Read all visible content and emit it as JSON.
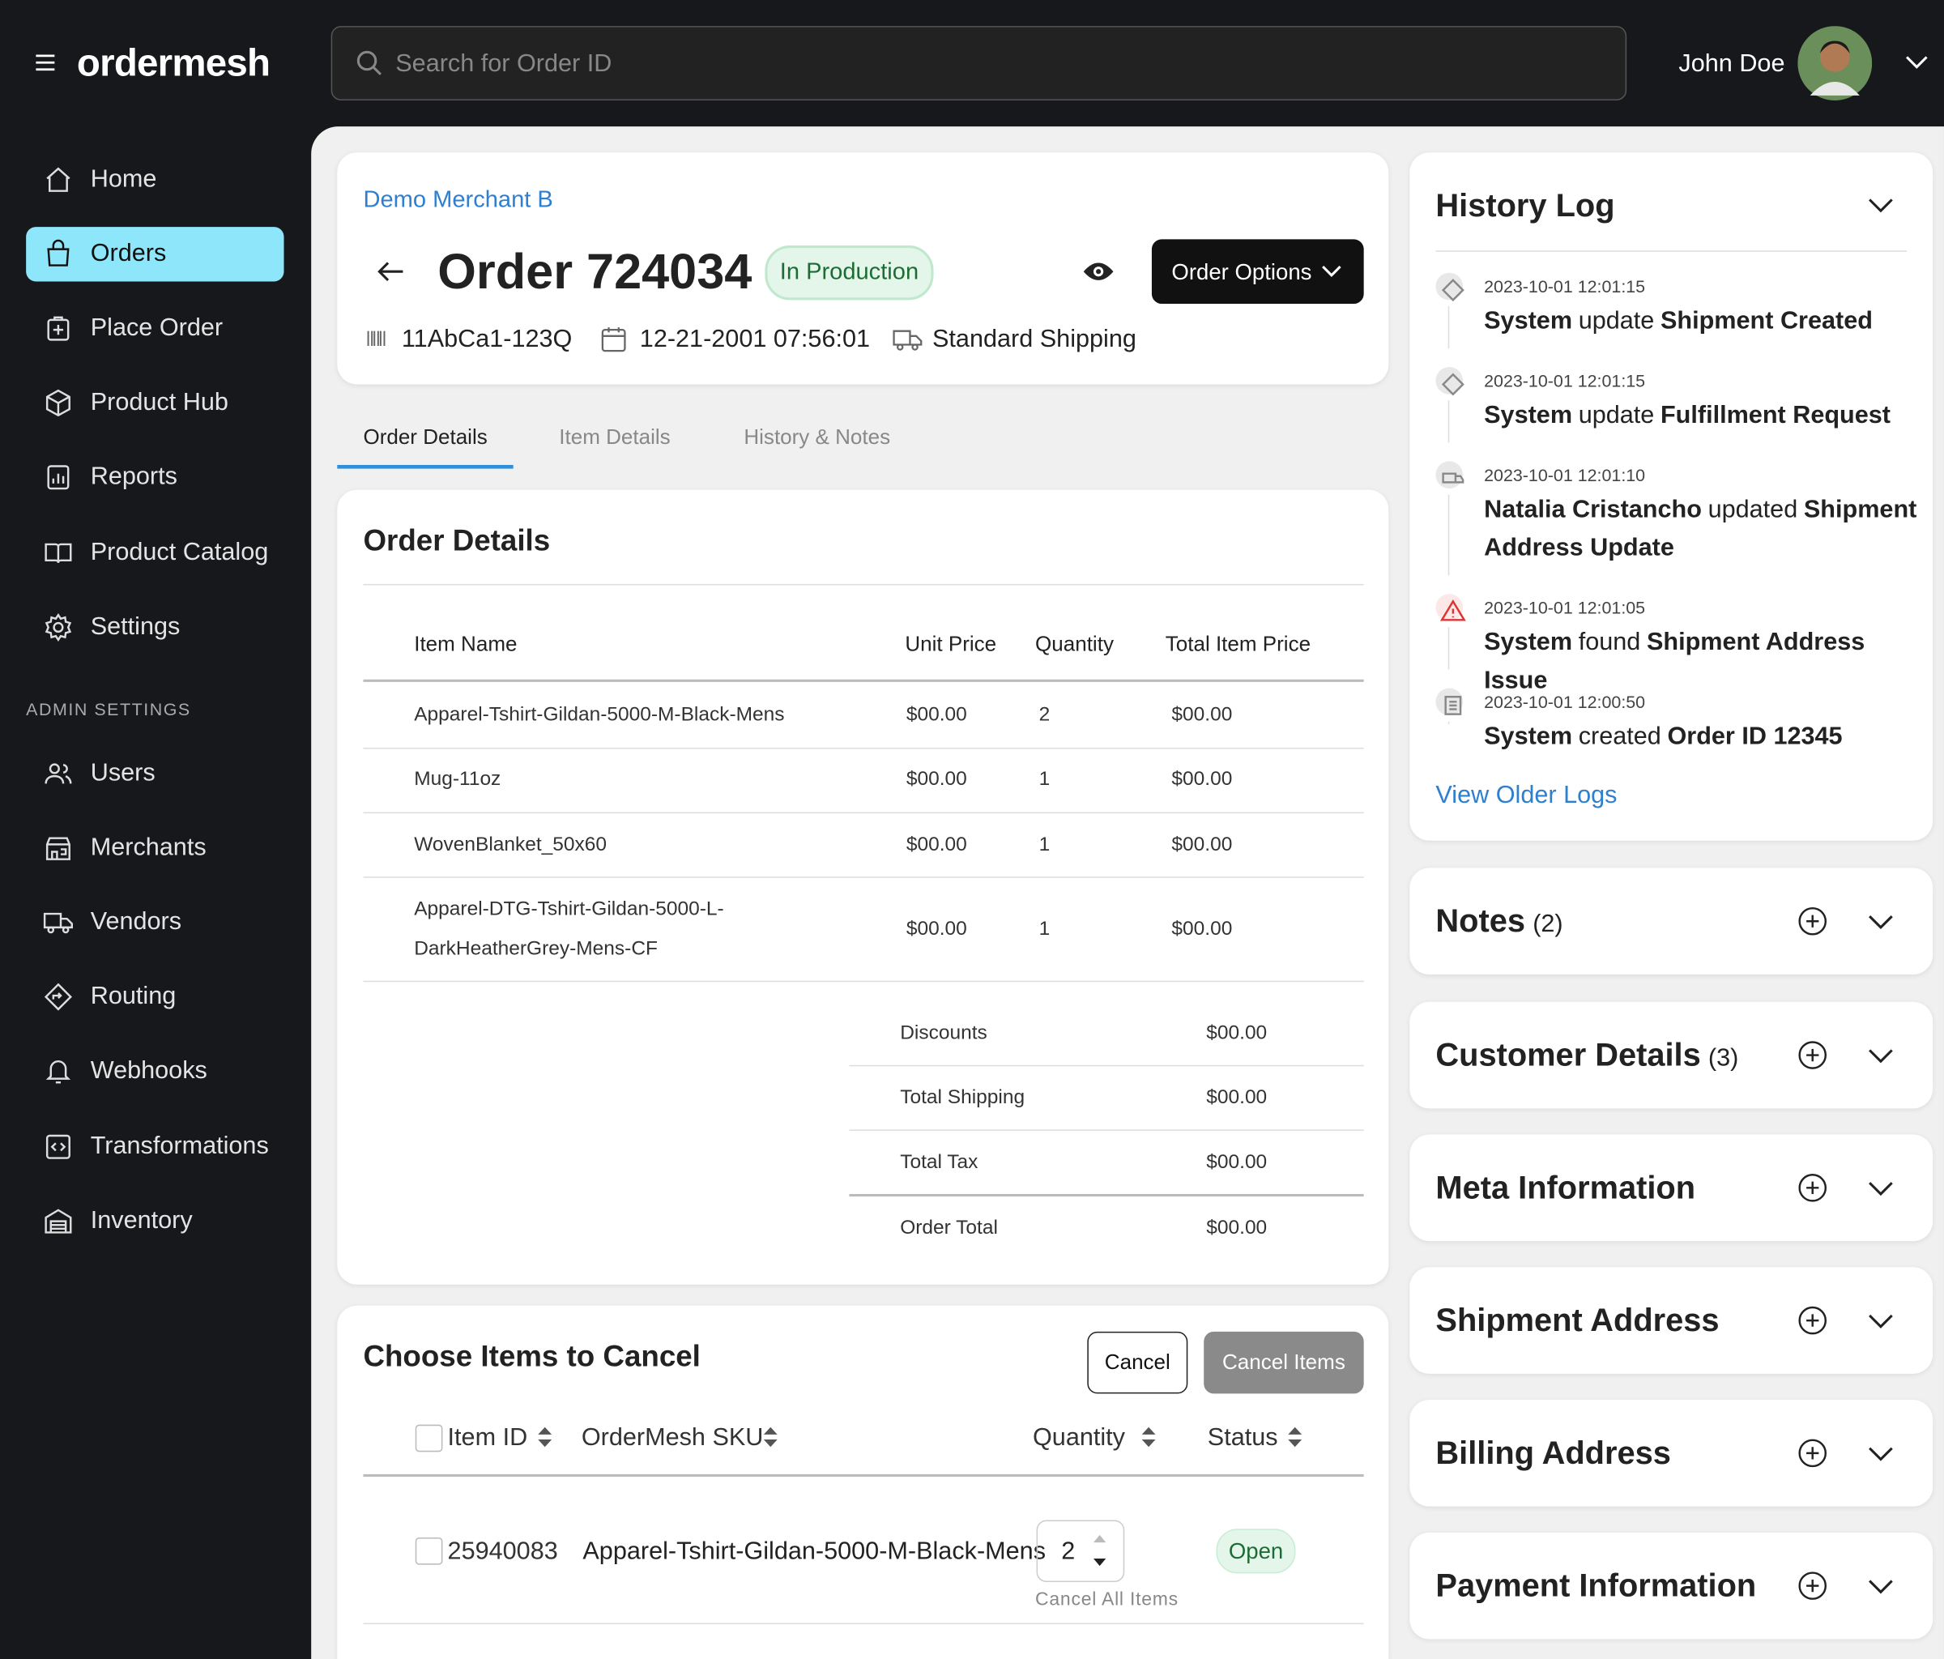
{
  "header": {
    "brand": "ordermesh",
    "search_placeholder": "Search for Order ID",
    "user_name": "John Doe"
  },
  "sidebar": {
    "nav": [
      "Home",
      "Orders",
      "Place Order",
      "Product Hub",
      "Reports",
      "Product Catalog",
      "Settings"
    ],
    "admin_label": "ADMIN SETTINGS",
    "admin_nav": [
      "Users",
      "Merchants",
      "Vendors",
      "Routing",
      "Webhooks",
      "Transformations",
      "Inventory"
    ]
  },
  "order": {
    "merchant": "Demo Merchant B",
    "title": "Order 724034",
    "status": "In Production",
    "options_button": "Order Options",
    "barcode": "11AbCa1-123Q",
    "date": "12-21-2001 07:56:01",
    "shipping": "Standard Shipping"
  },
  "tabs": [
    "Order Details",
    "Item Details",
    "History & Notes"
  ],
  "order_details": {
    "title": "Order Details",
    "columns": [
      "Item Name",
      "Unit Price",
      "Quantity",
      "Total Item Price"
    ],
    "rows": [
      [
        "Apparel-Tshirt-Gildan-5000-M-Black-Mens",
        "$00.00",
        2,
        "$00.00"
      ],
      [
        "Mug-11oz",
        "$00.00",
        1,
        "$00.00"
      ],
      [
        "WovenBlanket_50x60",
        "$00.00",
        1,
        "$00.00"
      ],
      [
        "Apparel-DTG-Tshirt-Gildan-5000-L-DarkHeatherGrey-Mens-CF",
        "$00.00",
        1,
        "$00.00"
      ]
    ],
    "summary": [
      [
        "Discounts",
        "$00.00"
      ],
      [
        "Total Shipping",
        "$00.00"
      ],
      [
        "Total Tax",
        "$00.00"
      ],
      [
        "Order Total",
        "$00.00"
      ]
    ]
  },
  "cancel": {
    "title": "Choose Items to Cancel",
    "cancel_button": "Cancel",
    "cancel_items_button": "Cancel Items",
    "columns": [
      "Item ID",
      "OrderMesh SKU",
      "Quantity",
      "Status"
    ],
    "rows": [
      {
        "item_id": "25940083",
        "sku": "Apparel-Tshirt-Gildan-5000-M-Black-Mens",
        "quantity": 2,
        "status": "Open"
      }
    ],
    "cancel_all": "Cancel All Items"
  },
  "history": {
    "title": "History Log",
    "entries": [
      {
        "time": "2023-10-01 12:01:15",
        "parts": [
          {
            "text": "System",
            "bold": true
          },
          {
            "text": "update",
            "bold": false
          },
          {
            "text": "Shipment Created",
            "bold": true
          }
        ]
      },
      {
        "time": "2023-10-01 12:01:15",
        "parts": [
          {
            "text": "System",
            "bold": true
          },
          {
            "text": "update",
            "bold": false
          },
          {
            "text": "Fulfillment Request",
            "bold": true
          }
        ]
      },
      {
        "time": "2023-10-01 12:01:10",
        "parts": [
          {
            "text": "Natalia Cristancho",
            "bold": true
          },
          {
            "text": "updated",
            "bold": false
          },
          {
            "text": "Shipment Address Update",
            "bold": true
          }
        ]
      },
      {
        "time": "2023-10-01 12:01:05",
        "parts": [
          {
            "text": "System",
            "bold": true
          },
          {
            "text": "found",
            "bold": false
          },
          {
            "text": "Shipment Address Issue",
            "bold": true
          }
        ]
      },
      {
        "time": "2023-10-01 12:00:50",
        "parts": [
          {
            "text": "System",
            "bold": true
          },
          {
            "text": "created",
            "bold": false
          },
          {
            "text": "Order ID 12345",
            "bold": true
          }
        ]
      }
    ],
    "view_older": "View Older Logs"
  },
  "panels": [
    {
      "title": "Notes",
      "count": "(2)"
    },
    {
      "title": "Customer Details",
      "count": "(3)"
    },
    {
      "title": "Meta Information"
    },
    {
      "title": "Shipment Address"
    },
    {
      "title": "Billing Address"
    },
    {
      "title": "Payment Information"
    }
  ]
}
